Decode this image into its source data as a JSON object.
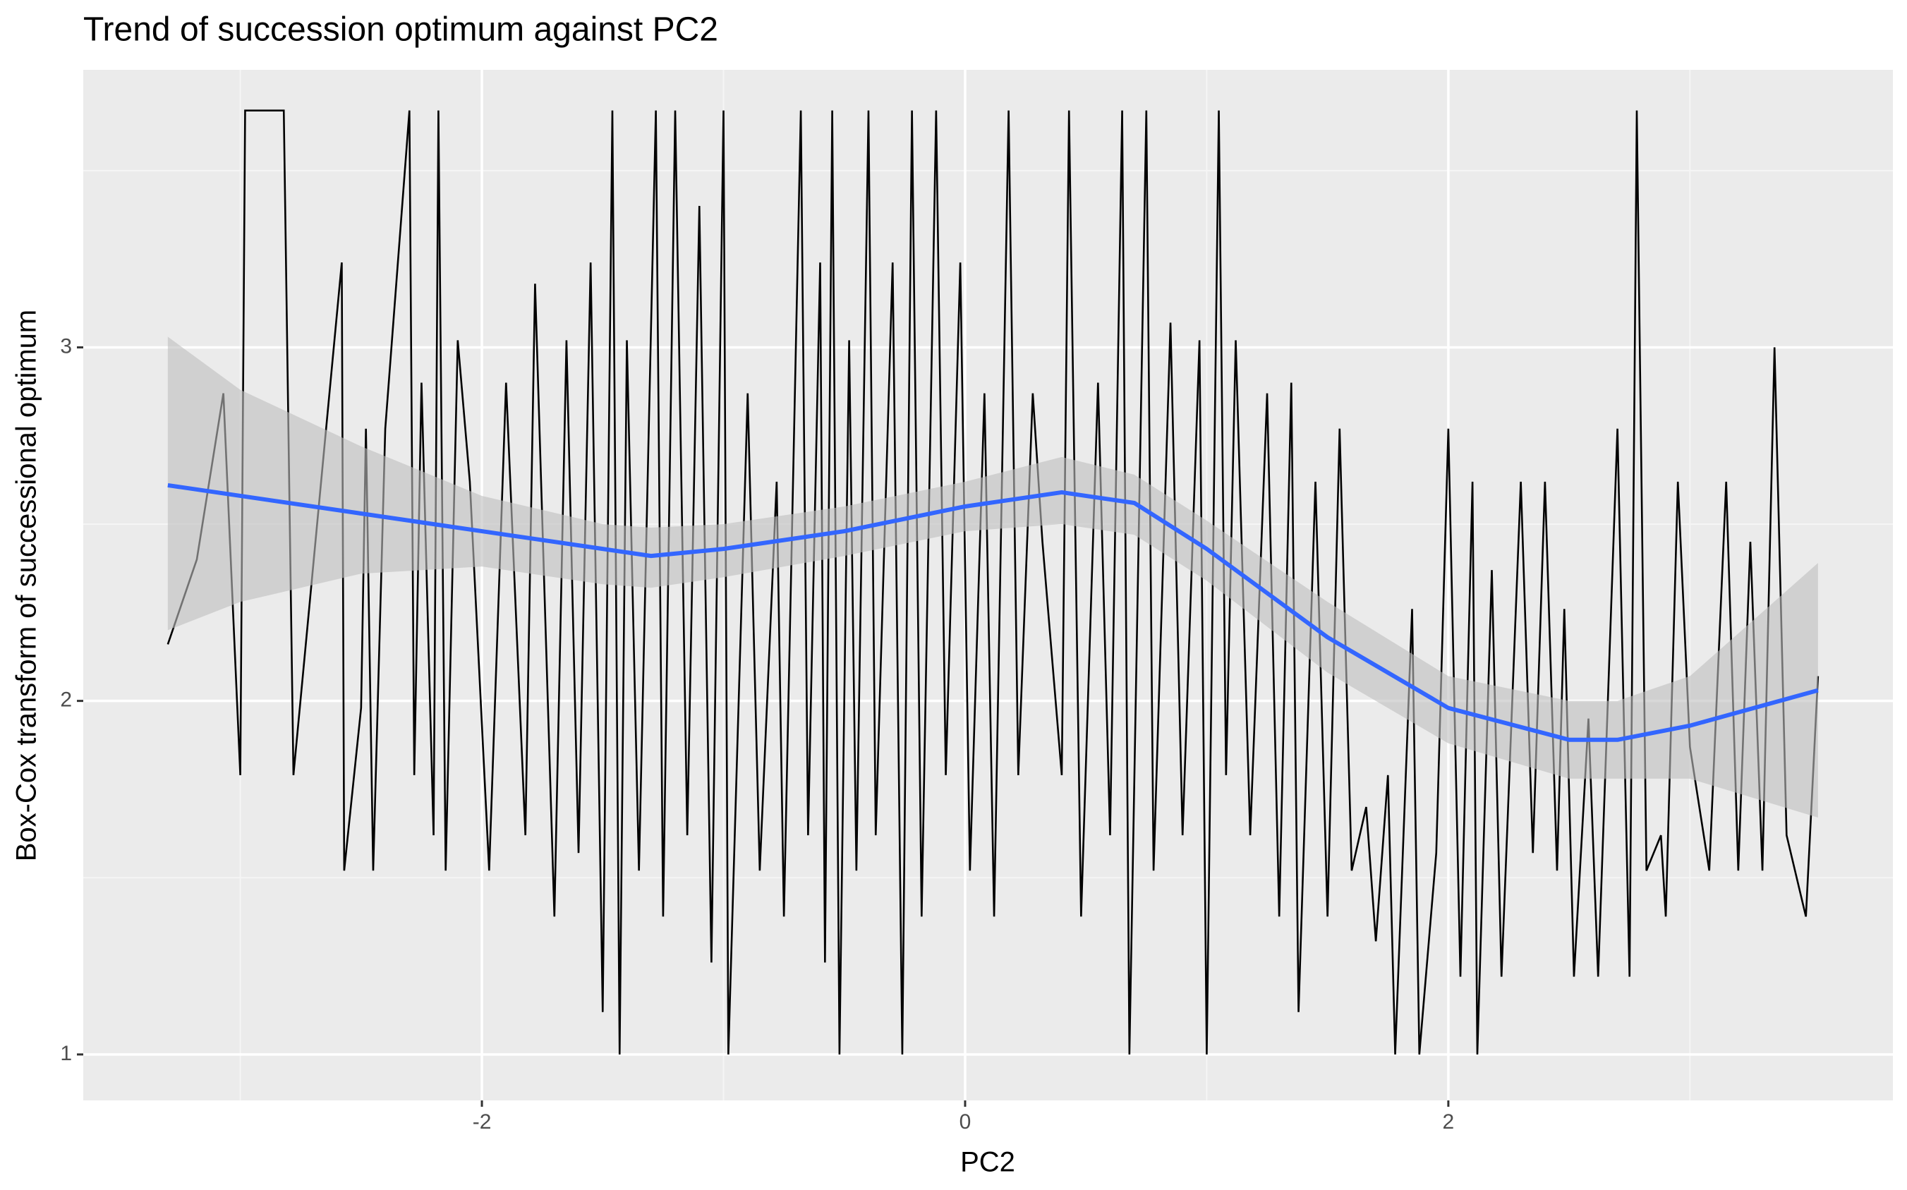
{
  "chart_data": {
    "type": "line",
    "title": "Trend of succession optimum against PC2",
    "x_label": "PC2",
    "y_label": "Box-Cox transform of successional optimum",
    "xlim": [
      -3.65,
      3.84
    ],
    "ylim": [
      0.87,
      3.785
    ],
    "xticks": [
      -2,
      0,
      2
    ],
    "yticks": [
      1,
      2,
      3
    ],
    "xminor": [
      -3,
      -1,
      1,
      3
    ],
    "yminor": [
      1.5,
      2.5,
      3.5
    ],
    "grid": true,
    "color": "#000000",
    "x": [
      -3.3,
      -3.18,
      -3.07,
      -3.0,
      -2.98,
      -2.82,
      -2.78,
      -2.58,
      -2.57,
      -2.5,
      -2.48,
      -2.45,
      -2.4,
      -2.3,
      -2.28,
      -2.25,
      -2.2,
      -2.18,
      -2.15,
      -2.1,
      -2.05,
      -1.97,
      -1.9,
      -1.82,
      -1.78,
      -1.7,
      -1.65,
      -1.6,
      -1.55,
      -1.5,
      -1.46,
      -1.43,
      -1.4,
      -1.35,
      -1.28,
      -1.25,
      -1.2,
      -1.15,
      -1.1,
      -1.05,
      -1.0,
      -0.98,
      -0.9,
      -0.85,
      -0.78,
      -0.75,
      -0.68,
      -0.65,
      -0.6,
      -0.58,
      -0.55,
      -0.52,
      -0.48,
      -0.45,
      -0.4,
      -0.37,
      -0.3,
      -0.26,
      -0.22,
      -0.18,
      -0.12,
      -0.08,
      -0.02,
      0.02,
      0.08,
      0.12,
      0.18,
      0.22,
      0.28,
      0.32,
      0.4,
      0.43,
      0.48,
      0.55,
      0.6,
      0.65,
      0.68,
      0.75,
      0.78,
      0.85,
      0.9,
      0.97,
      1.0,
      1.05,
      1.08,
      1.12,
      1.18,
      1.25,
      1.3,
      1.35,
      1.38,
      1.45,
      1.5,
      1.55,
      1.6,
      1.66,
      1.7,
      1.75,
      1.78,
      1.85,
      1.88,
      1.95,
      2.0,
      2.05,
      2.1,
      2.12,
      2.18,
      2.22,
      2.3,
      2.35,
      2.4,
      2.45,
      2.48,
      2.52,
      2.58,
      2.62,
      2.7,
      2.75,
      2.78,
      2.82,
      2.88,
      2.9,
      2.95,
      3.0,
      3.08,
      3.15,
      3.2,
      3.25,
      3.3,
      3.35,
      3.4,
      3.48,
      3.53
    ],
    "values": [
      2.16,
      2.4,
      2.87,
      1.79,
      3.67,
      3.67,
      1.79,
      3.24,
      1.52,
      1.98,
      2.77,
      1.52,
      2.77,
      3.67,
      1.79,
      2.9,
      1.62,
      3.67,
      1.52,
      3.02,
      2.62,
      1.52,
      2.9,
      1.62,
      3.18,
      1.39,
      3.02,
      1.57,
      3.24,
      1.12,
      3.67,
      1.0,
      3.02,
      1.52,
      3.67,
      1.39,
      3.67,
      1.62,
      3.4,
      1.26,
      3.67,
      1.0,
      2.87,
      1.52,
      2.62,
      1.39,
      3.67,
      1.62,
      3.24,
      1.26,
      3.67,
      1.0,
      3.02,
      1.52,
      3.67,
      1.62,
      3.24,
      1.0,
      3.67,
      1.39,
      3.67,
      1.79,
      3.24,
      1.52,
      2.87,
      1.39,
      3.67,
      1.79,
      2.87,
      2.45,
      1.79,
      3.67,
      1.39,
      2.9,
      1.62,
      3.67,
      1.0,
      3.67,
      1.52,
      3.07,
      1.62,
      3.02,
      1.0,
      3.67,
      1.79,
      3.02,
      1.62,
      2.87,
      1.39,
      2.9,
      1.12,
      2.62,
      1.39,
      2.77,
      1.52,
      1.7,
      1.32,
      1.79,
      1.0,
      2.26,
      1.0,
      1.57,
      2.77,
      1.22,
      2.62,
      1.0,
      2.37,
      1.22,
      2.62,
      1.57,
      2.62,
      1.52,
      2.26,
      1.22,
      1.95,
      1.22,
      2.77,
      1.22,
      3.67,
      1.52,
      1.62,
      1.39,
      2.62,
      1.87,
      1.52,
      2.62,
      1.52,
      2.45,
      1.52,
      3.0,
      1.62,
      1.39,
      2.07
    ],
    "smooth": {
      "color": "#3366ff",
      "band_color": "#bebebe",
      "x": [
        -3.3,
        -3.0,
        -2.5,
        -2.0,
        -1.5,
        -1.3,
        -1.0,
        -0.5,
        0.0,
        0.4,
        0.7,
        1.0,
        1.5,
        2.0,
        2.5,
        2.7,
        3.0,
        3.53
      ],
      "values": [
        2.61,
        2.58,
        2.53,
        2.48,
        2.43,
        2.41,
        2.43,
        2.48,
        2.55,
        2.59,
        2.56,
        2.43,
        2.18,
        1.98,
        1.89,
        1.89,
        1.93,
        2.03
      ],
      "lower": [
        2.2,
        2.28,
        2.36,
        2.38,
        2.33,
        2.32,
        2.35,
        2.41,
        2.48,
        2.5,
        2.47,
        2.34,
        2.08,
        1.88,
        1.78,
        1.78,
        1.78,
        1.67
      ],
      "upper": [
        3.03,
        2.88,
        2.72,
        2.58,
        2.5,
        2.49,
        2.5,
        2.55,
        2.62,
        2.69,
        2.64,
        2.51,
        2.28,
        2.07,
        2.0,
        2.0,
        2.07,
        2.39
      ]
    }
  }
}
